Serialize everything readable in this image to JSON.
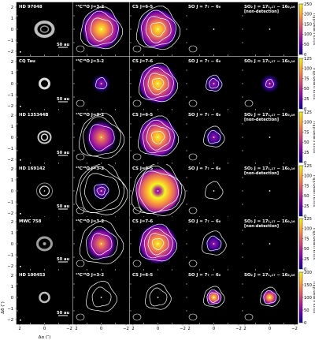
{
  "figure": {
    "row_labels": [
      "HD 97048",
      "CQ Tau",
      "HD 135344B",
      "HD 169142",
      "MWC 758",
      "HD 100453"
    ],
    "column_titles": [
      "",
      "¹³C¹⁸O J=3-2",
      "CS J=6-5",
      "SO J = 7₇ − 6₆",
      "SO₂ J = 17₁,₁₇ − 16₀,₁₆"
    ],
    "column_titles_by_row": {
      "1": [
        "¹³C¹⁸O J=3-2",
        "¹³C¹⁸O J=3-2",
        "¹³C¹⁸O J=3-2",
        "¹³C¹⁸O J=3-2",
        "¹³C¹⁸O J=3-2",
        "¹³C¹⁸O J=3-2"
      ],
      "2": [
        "CS J=6-5",
        "CS J=7-6",
        "CS J=6-5",
        "CS J=6-5",
        "CS J=7-6",
        "CS J=6-5"
      ]
    },
    "non_detection_label": "[non-detection]",
    "non_detection_rows": [
      0,
      2,
      3,
      4
    ],
    "scalebar_label": "50 au",
    "colorbar_label": "mJy/beam km/s",
    "colorbar_ticks": [
      [
        "0",
        "50",
        "100",
        "150",
        "200",
        "250"
      ],
      [
        "0",
        "25",
        "50",
        "75",
        "100",
        "125"
      ],
      [
        "0",
        "25",
        "50",
        "75",
        "100",
        "125"
      ],
      [
        "0",
        "25",
        "50",
        "75",
        "100",
        "125"
      ],
      [
        "0",
        "25",
        "50",
        "75",
        "100",
        "125"
      ],
      [
        "0",
        "50",
        "100",
        "150",
        "200"
      ]
    ],
    "y_ticks": [
      "2",
      "1",
      "0",
      "−1",
      "−2"
    ],
    "x_ticks": [
      "2",
      "0",
      "−2"
    ],
    "y_axis_title": "Δδ (″)",
    "x_axis_title": "Δα (″)",
    "colors": {
      "background": "#000000",
      "contour": "#ffffff",
      "colormap": [
        "#0d0887",
        "#5c01a6",
        "#9c179e",
        "#cc4778",
        "#ed7953",
        "#fdb42f",
        "#f0f921"
      ]
    }
  }
}
